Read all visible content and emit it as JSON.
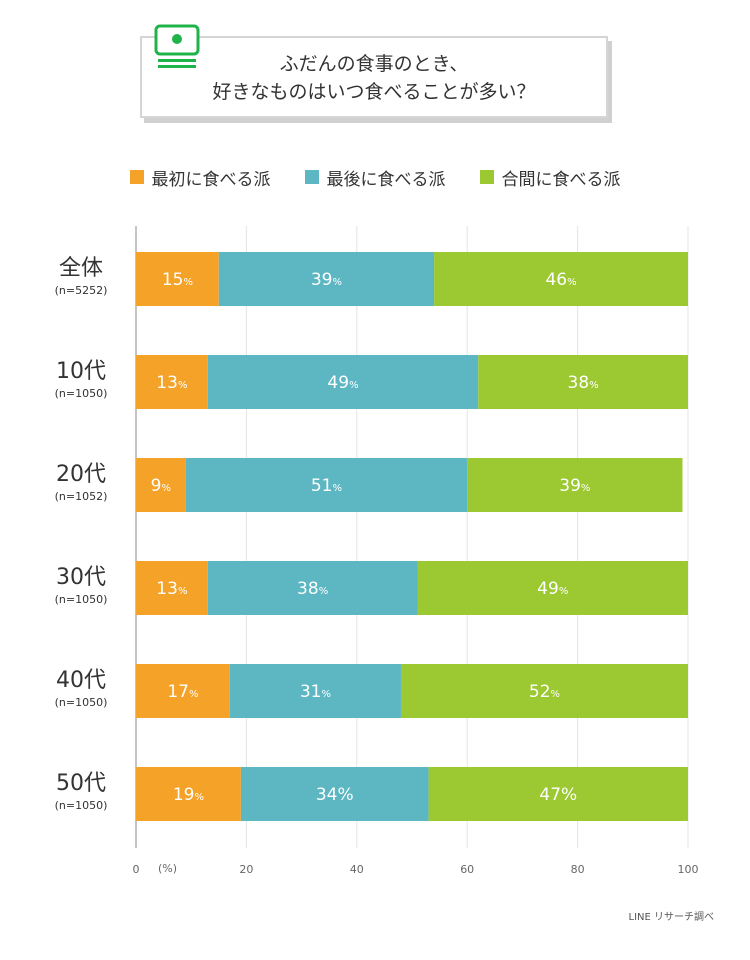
{
  "title": {
    "line1": "ふだんの食事のとき、",
    "line2": "好きなものはいつ食べることが多い？"
  },
  "legend": [
    {
      "label": "最初に食べる派",
      "color": "#f5a229"
    },
    {
      "label": "最後に食べる派",
      "color": "#5db7c3"
    },
    {
      "label": "合間に食べる派",
      "color": "#9cc832"
    }
  ],
  "rows": [
    {
      "name": "全体",
      "n": "(n=5252)"
    },
    {
      "name": "10代",
      "n": "(n=1050)"
    },
    {
      "name": "20代",
      "n": "(n=1052)"
    },
    {
      "name": "30代",
      "n": "(n=1050)"
    },
    {
      "name": "40代",
      "n": "(n=1050)"
    },
    {
      "name": "50代",
      "n": "(n=1050)"
    }
  ],
  "axis": {
    "unit": "(%)"
  },
  "footer": "LINE リサーチ調べ",
  "chart_data": {
    "type": "bar",
    "orientation": "horizontal",
    "stacked": true,
    "title": "ふだんの食事のとき、好きなものはいつ食べることが多い？",
    "categories": [
      "全体",
      "10代",
      "20代",
      "30代",
      "40代",
      "50代"
    ],
    "category_notes": [
      "(n=5252)",
      "(n=1050)",
      "(n=1052)",
      "(n=1050)",
      "(n=1050)",
      "(n=1050)"
    ],
    "series": [
      {
        "name": "最初に食べる派",
        "color": "#f5a229",
        "values": [
          15,
          13,
          9,
          13,
          17,
          19
        ],
        "labels": [
          [
            "15",
            "%"
          ],
          [
            "13",
            "%"
          ],
          [
            "9",
            "%"
          ],
          [
            "13",
            "%"
          ],
          [
            "17",
            "%"
          ],
          [
            "19",
            "%"
          ]
        ]
      },
      {
        "name": "最後に食べる派",
        "color": "#5db7c3",
        "values": [
          39,
          49,
          51,
          38,
          31,
          34
        ],
        "labels": [
          [
            "39",
            "%"
          ],
          [
            "49",
            "%"
          ],
          [
            "51",
            "%"
          ],
          [
            "38",
            "%"
          ],
          [
            "31",
            "%"
          ],
          [
            "34%",
            ""
          ]
        ]
      },
      {
        "name": "合間に食べる派",
        "color": "#9cc832",
        "values": [
          46,
          38,
          39,
          49,
          52,
          47
        ],
        "labels": [
          [
            "46",
            "%"
          ],
          [
            "38",
            "%"
          ],
          [
            "39",
            "%"
          ],
          [
            "49",
            "%"
          ],
          [
            "52",
            "%"
          ],
          [
            "47%",
            ""
          ]
        ]
      }
    ],
    "xlim": [
      0,
      100
    ],
    "xticks": [
      "0",
      "20",
      "40",
      "60",
      "80",
      "100"
    ],
    "xlabel": "(%)",
    "grid": true,
    "legend_position": "top"
  }
}
